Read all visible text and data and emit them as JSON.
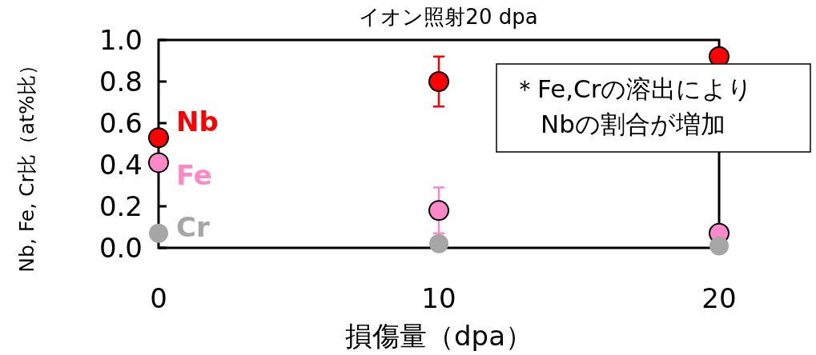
{
  "chart_data": {
    "type": "scatter",
    "title": "イオン照射20 dpa",
    "xlabel": "損傷量（dpa）",
    "ylabel": "Nb, Fe, Cr比（at%比）",
    "x": [
      0,
      10,
      20
    ],
    "series": [
      {
        "name": "Nb",
        "color": "#ff0000",
        "values": [
          0.53,
          0.8,
          0.92
        ],
        "errors": [
          null,
          0.12,
          null
        ]
      },
      {
        "name": "Fe",
        "color": "#ff88c8",
        "values": [
          0.41,
          0.18,
          0.07
        ],
        "errors": [
          null,
          0.11,
          null
        ]
      },
      {
        "name": "Cr",
        "color": "#a6a6a6",
        "values": [
          0.07,
          0.02,
          0.01
        ]
      }
    ],
    "xlim": [
      0,
      20
    ],
    "xticks": [
      0,
      10,
      20
    ],
    "ylim": [
      0,
      1
    ],
    "yticks": [
      {
        "value": 0,
        "label": "0.0"
      },
      {
        "value": 0.2,
        "label": "0.2"
      },
      {
        "value": 0.4,
        "label": "0.4"
      },
      {
        "value": 0.6,
        "label": "0.6"
      },
      {
        "value": 0.8,
        "label": "0.8"
      },
      {
        "value": 1,
        "label": "1.0"
      }
    ],
    "marker": "circle",
    "grid": false,
    "annotations": [
      "＊Fe,Crの溶出により\nNbの割合が増加"
    ]
  }
}
